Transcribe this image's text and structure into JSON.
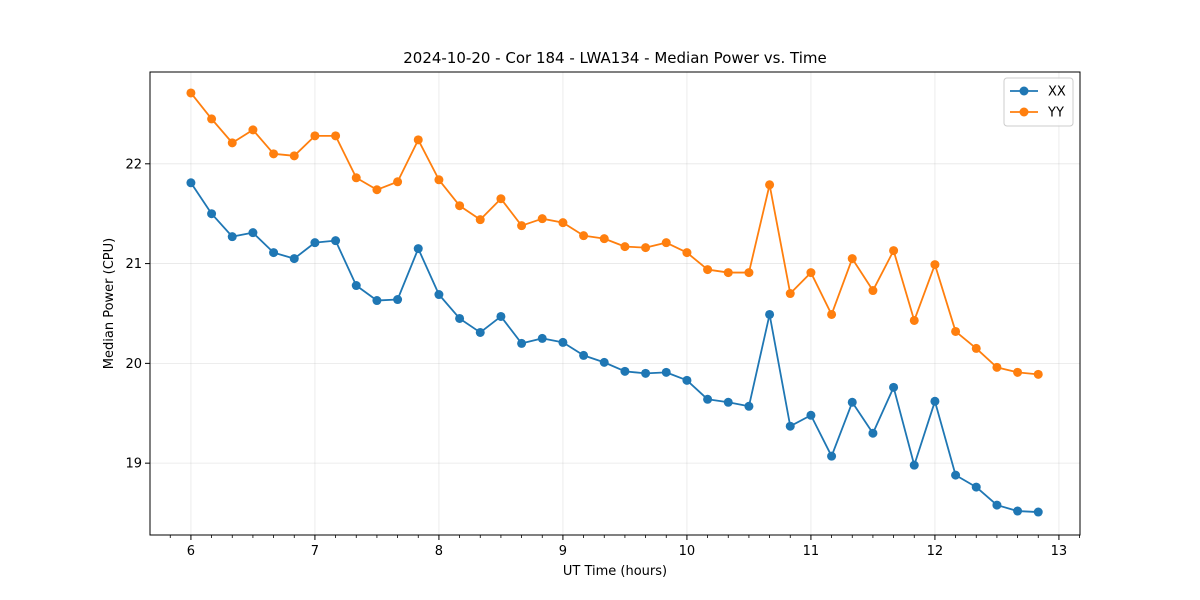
{
  "chart_data": {
    "type": "line",
    "title": "2024-10-20 - Cor 184 - LWA134 - Median Power vs. Time",
    "xlabel": "UT Time (hours)",
    "ylabel": "Median Power (CPU)",
    "xlim": [
      5.67,
      13.17
    ],
    "ylim": [
      18.28,
      22.92
    ],
    "xticks": [
      6,
      7,
      8,
      9,
      10,
      11,
      12,
      13
    ],
    "yticks": [
      19,
      20,
      21,
      22
    ],
    "grid": true,
    "legend_position": "top-right",
    "x": [
      6.0,
      6.1667,
      6.3333,
      6.5,
      6.6667,
      6.8333,
      7.0,
      7.1667,
      7.3333,
      7.5,
      7.6667,
      7.8333,
      8.0,
      8.1667,
      8.3333,
      8.5,
      8.6667,
      8.8333,
      9.0,
      9.1667,
      9.3333,
      9.5,
      9.6667,
      9.8333,
      10.0,
      10.1667,
      10.3333,
      10.5,
      10.6667,
      10.8333,
      11.0,
      11.1667,
      11.3333,
      11.5,
      11.6667,
      11.8333,
      12.0,
      12.1667,
      12.3333,
      12.5,
      12.6667,
      12.8333
    ],
    "series": [
      {
        "name": "XX",
        "color": "#1f77b4",
        "values": [
          21.81,
          21.5,
          21.27,
          21.31,
          21.11,
          21.05,
          21.21,
          21.23,
          20.78,
          20.63,
          20.64,
          21.15,
          20.69,
          20.45,
          20.31,
          20.47,
          20.2,
          20.25,
          20.21,
          20.08,
          20.01,
          19.92,
          19.9,
          19.91,
          19.83,
          19.64,
          19.61,
          19.57,
          20.49,
          19.37,
          19.48,
          19.07,
          19.61,
          19.3,
          19.76,
          18.98,
          19.62,
          18.88,
          18.76,
          18.58,
          18.52,
          18.51
        ]
      },
      {
        "name": "YY",
        "color": "#ff7f0e",
        "values": [
          22.71,
          22.45,
          22.21,
          22.34,
          22.1,
          22.08,
          22.28,
          22.28,
          21.86,
          21.74,
          21.82,
          22.24,
          21.84,
          21.58,
          21.44,
          21.65,
          21.38,
          21.45,
          21.41,
          21.28,
          21.25,
          21.17,
          21.16,
          21.21,
          21.11,
          20.94,
          20.91,
          20.91,
          21.79,
          20.7,
          20.91,
          20.49,
          21.05,
          20.73,
          21.13,
          20.43,
          20.99,
          20.32,
          20.15,
          19.96,
          19.91,
          19.89
        ]
      }
    ]
  }
}
